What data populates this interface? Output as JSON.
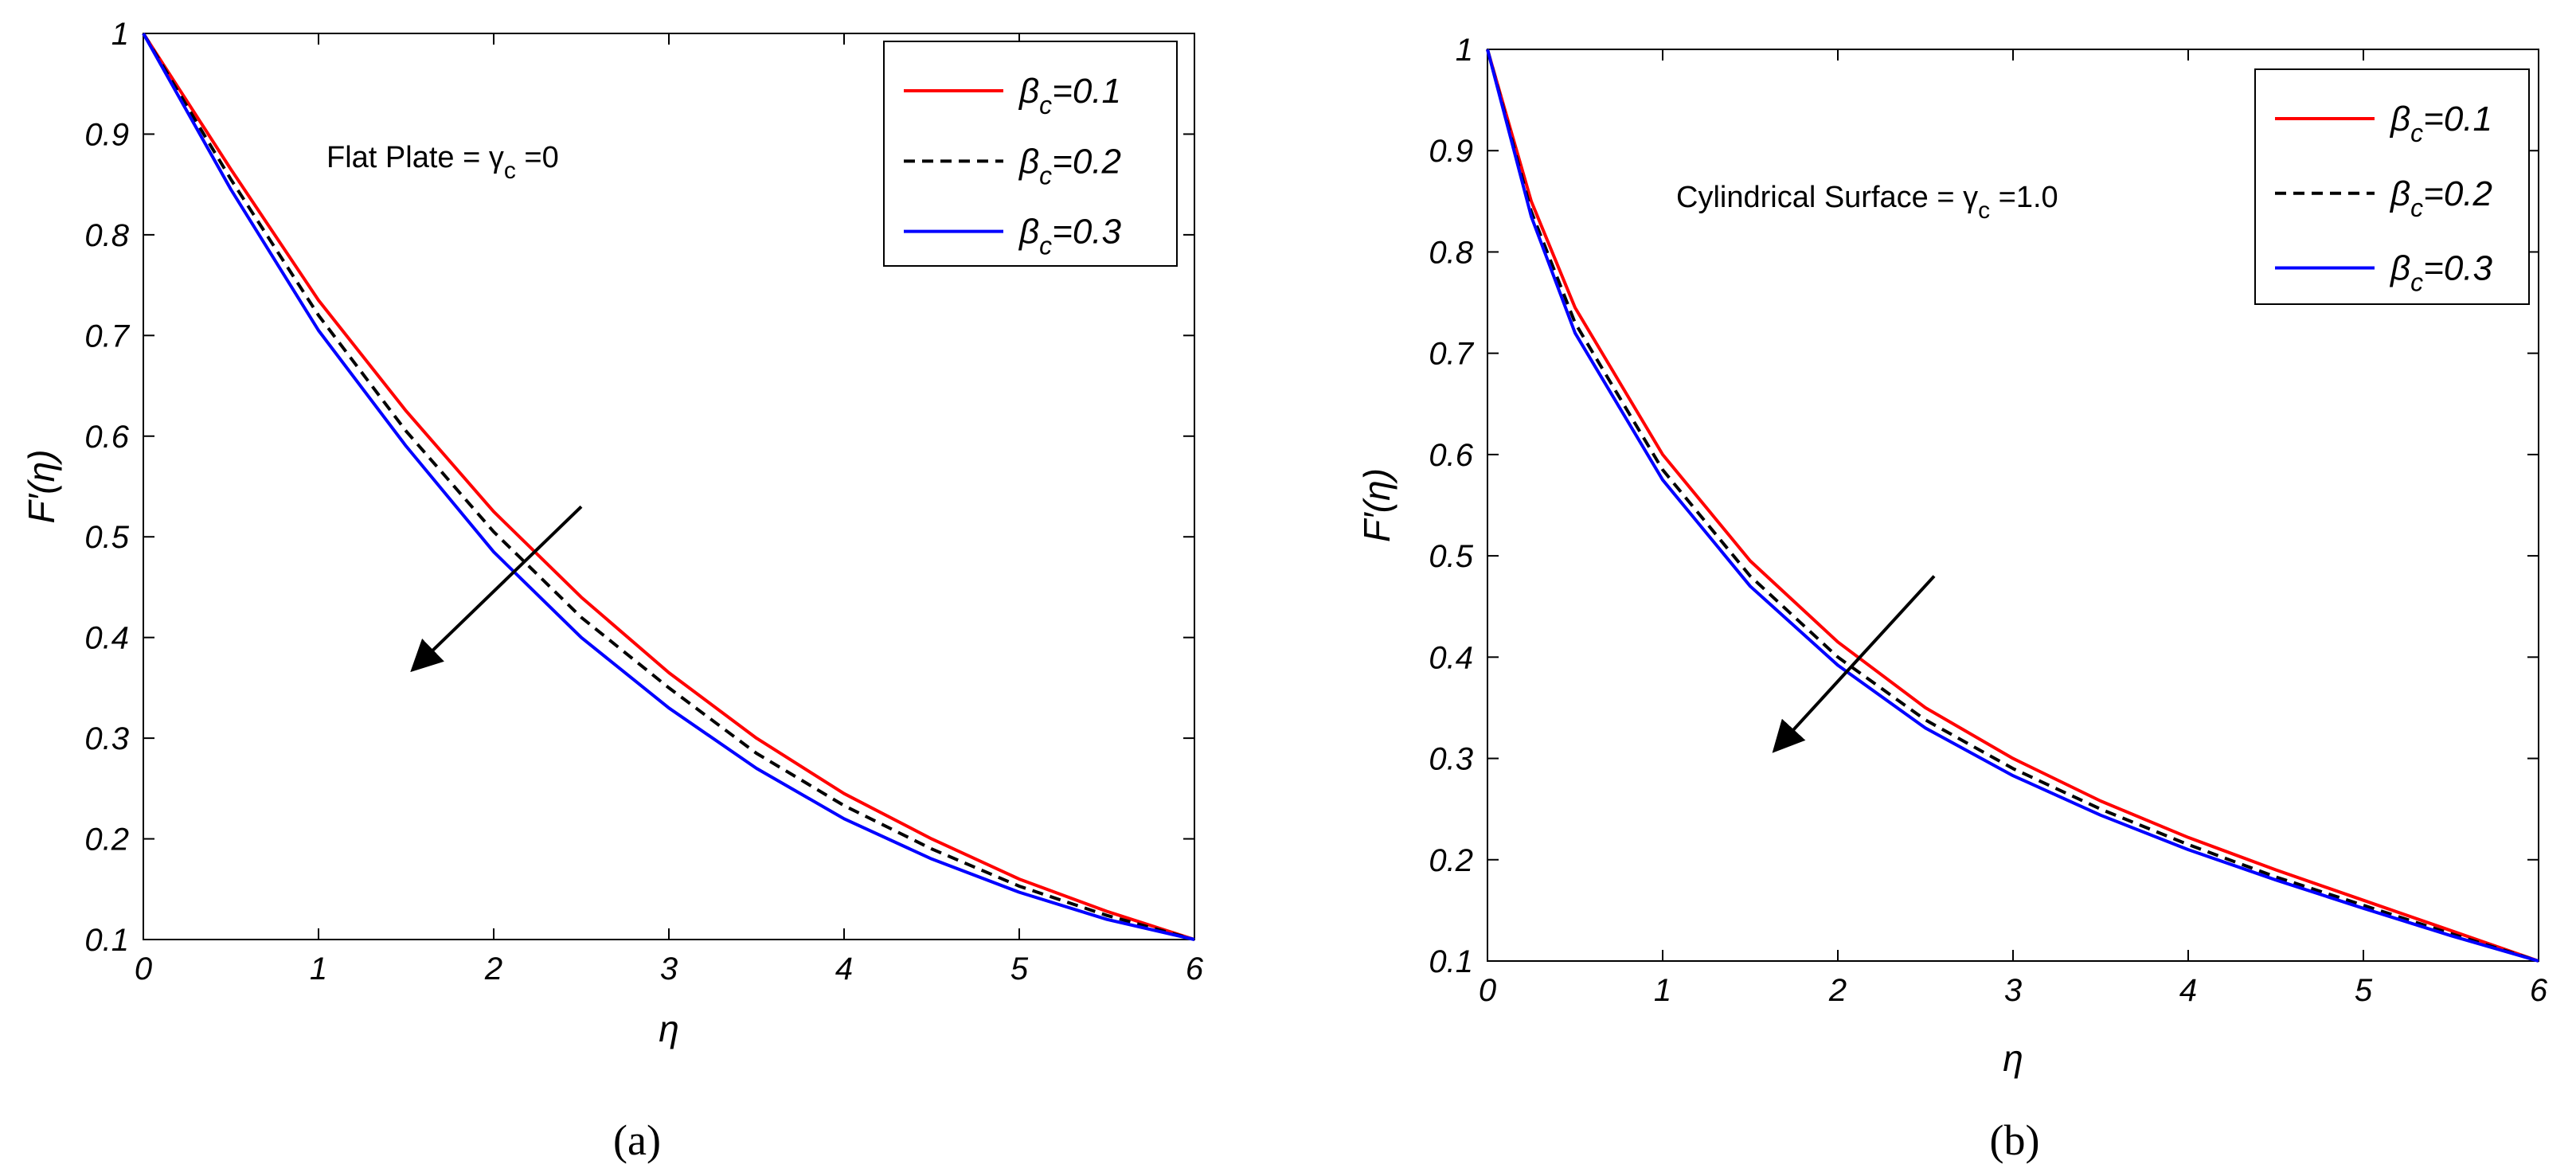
{
  "chart_data": [
    {
      "type": "line",
      "panel_label": "(a)",
      "xlabel": "η",
      "ylabel": "F′(η)",
      "xlim": [
        0,
        6
      ],
      "ylim": [
        0.1,
        1
      ],
      "xticks": [
        "0",
        "1",
        "2",
        "3",
        "4",
        "5",
        "6"
      ],
      "yticks": [
        "0.1",
        "0.2",
        "0.3",
        "0.4",
        "0.5",
        "0.6",
        "0.7",
        "0.8",
        "0.9",
        "1"
      ],
      "grid": false,
      "legend_position": "top-right",
      "annotation": {
        "text_main": "Flat Plate = γ",
        "text_sub": "c",
        "text_tail": " =0"
      },
      "arrow": {
        "from": [
          2.5,
          0.53
        ],
        "to": [
          1.55,
          0.37
        ]
      },
      "series": [
        {
          "symbol": "β",
          "sub": "c",
          "value_text": "=0.1",
          "color": "#ff0000",
          "dash": "solid",
          "x": [
            0,
            0.5,
            1,
            1.5,
            2,
            2.5,
            3,
            3.5,
            4,
            4.5,
            5,
            5.5,
            6
          ],
          "y": [
            1.0,
            0.865,
            0.735,
            0.625,
            0.525,
            0.44,
            0.365,
            0.3,
            0.245,
            0.2,
            0.16,
            0.128,
            0.1
          ]
        },
        {
          "symbol": "β",
          "sub": "c",
          "value_text": "=0.2",
          "color": "#000000",
          "dash": "dashed",
          "x": [
            0,
            0.5,
            1,
            1.5,
            2,
            2.5,
            3,
            3.5,
            4,
            4.5,
            5,
            5.5,
            6
          ],
          "y": [
            1.0,
            0.855,
            0.72,
            0.605,
            0.505,
            0.42,
            0.35,
            0.285,
            0.233,
            0.19,
            0.153,
            0.124,
            0.1
          ]
        },
        {
          "symbol": "β",
          "sub": "c",
          "value_text": "=0.3",
          "color": "#0000ff",
          "dash": "solid",
          "x": [
            0,
            0.5,
            1,
            1.5,
            2,
            2.5,
            3,
            3.5,
            4,
            4.5,
            5,
            5.5,
            6
          ],
          "y": [
            1.0,
            0.845,
            0.705,
            0.59,
            0.485,
            0.4,
            0.33,
            0.27,
            0.22,
            0.18,
            0.147,
            0.12,
            0.1
          ]
        }
      ]
    },
    {
      "type": "line",
      "panel_label": "(b)",
      "xlabel": "η",
      "ylabel": "F′(η)",
      "xlim": [
        0,
        6
      ],
      "ylim": [
        0.1,
        1
      ],
      "xticks": [
        "0",
        "1",
        "2",
        "3",
        "4",
        "5",
        "6"
      ],
      "yticks": [
        "0.1",
        "0.2",
        "0.3",
        "0.4",
        "0.5",
        "0.6",
        "0.7",
        "0.8",
        "0.9",
        "1"
      ],
      "grid": false,
      "legend_position": "top-right",
      "annotation": {
        "text_main": "Cylindrical Surface = γ",
        "text_sub": "c",
        "text_tail": " =1.0"
      },
      "arrow": {
        "from": [
          2.55,
          0.48
        ],
        "to": [
          1.65,
          0.31
        ]
      },
      "series": [
        {
          "symbol": "β",
          "sub": "c",
          "value_text": "=0.1",
          "color": "#ff0000",
          "dash": "solid",
          "x": [
            0,
            0.25,
            0.5,
            1,
            1.5,
            2,
            2.5,
            3,
            3.5,
            4,
            4.5,
            5,
            5.5,
            6
          ],
          "y": [
            1.0,
            0.85,
            0.745,
            0.6,
            0.495,
            0.415,
            0.35,
            0.3,
            0.258,
            0.222,
            0.19,
            0.16,
            0.13,
            0.1
          ]
        },
        {
          "symbol": "β",
          "sub": "c",
          "value_text": "=0.2",
          "color": "#000000",
          "dash": "dashed",
          "x": [
            0,
            0.25,
            0.5,
            1,
            1.5,
            2,
            2.5,
            3,
            3.5,
            4,
            4.5,
            5,
            5.5,
            6
          ],
          "y": [
            1.0,
            0.84,
            0.73,
            0.585,
            0.48,
            0.4,
            0.338,
            0.29,
            0.25,
            0.215,
            0.183,
            0.155,
            0.127,
            0.1
          ]
        },
        {
          "symbol": "β",
          "sub": "c",
          "value_text": "=0.3",
          "color": "#0000ff",
          "dash": "solid",
          "x": [
            0,
            0.25,
            0.5,
            1,
            1.5,
            2,
            2.5,
            3,
            3.5,
            4,
            4.5,
            5,
            5.5,
            6
          ],
          "y": [
            1.0,
            0.835,
            0.72,
            0.575,
            0.47,
            0.392,
            0.33,
            0.283,
            0.244,
            0.21,
            0.18,
            0.152,
            0.125,
            0.1
          ]
        }
      ]
    }
  ]
}
